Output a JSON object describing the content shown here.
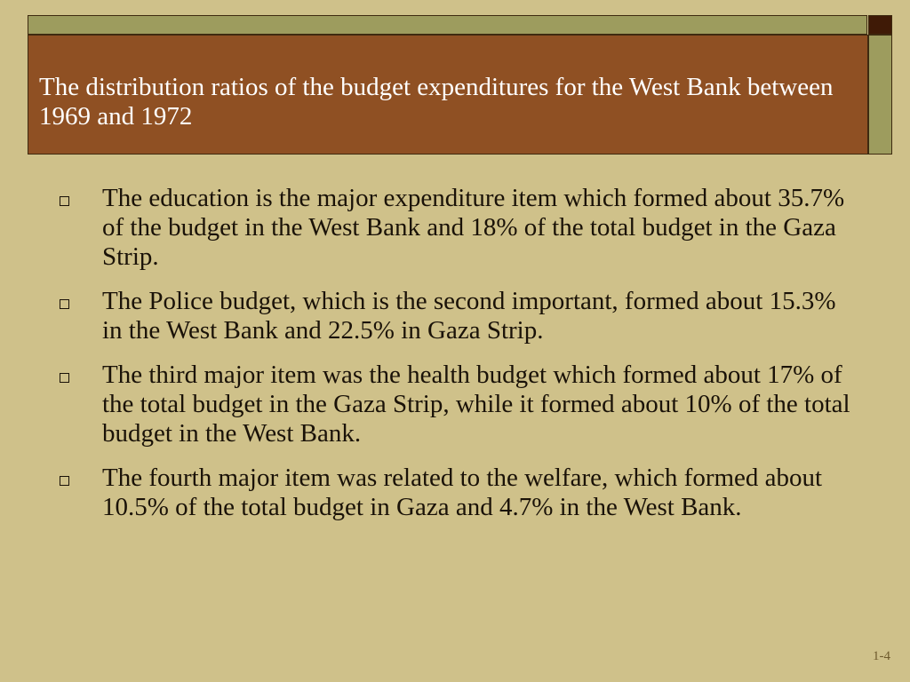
{
  "title": "The distribution ratios of the budget expenditures for the West Bank between 1969 and 1972",
  "bullets": [
    {
      "icon": "hollow-square-bullet",
      "text": "The education is the major expenditure item which formed about 35.7% of the budget in the West Bank and 18% of the total budget in the Gaza Strip."
    },
    {
      "icon": "hollow-square-bullet",
      "text": "The Police budget, which is the second important, formed about 15.3% in the West Bank and 22.5% in Gaza Strip."
    },
    {
      "icon": "hollow-square-bullet",
      "text": "The third major item was the health budget which formed about 17% of the total budget in the Gaza Strip, while it formed about 10% of the total budget in the West Bank."
    },
    {
      "icon": "hollow-square-bullet",
      "text": "The fourth major item was related to the welfare, which formed about 10.5% of the total budget in Gaza and 4.7% in the West Bank."
    }
  ],
  "slide_number": "1-4",
  "colors": {
    "background": "#CFC18A",
    "title_bar": "#8F5023",
    "accent_bar": "#9D9C5E",
    "corner_square": "#3F1A06",
    "title_text": "#FFFFFF",
    "body_text": "#1A1208"
  }
}
